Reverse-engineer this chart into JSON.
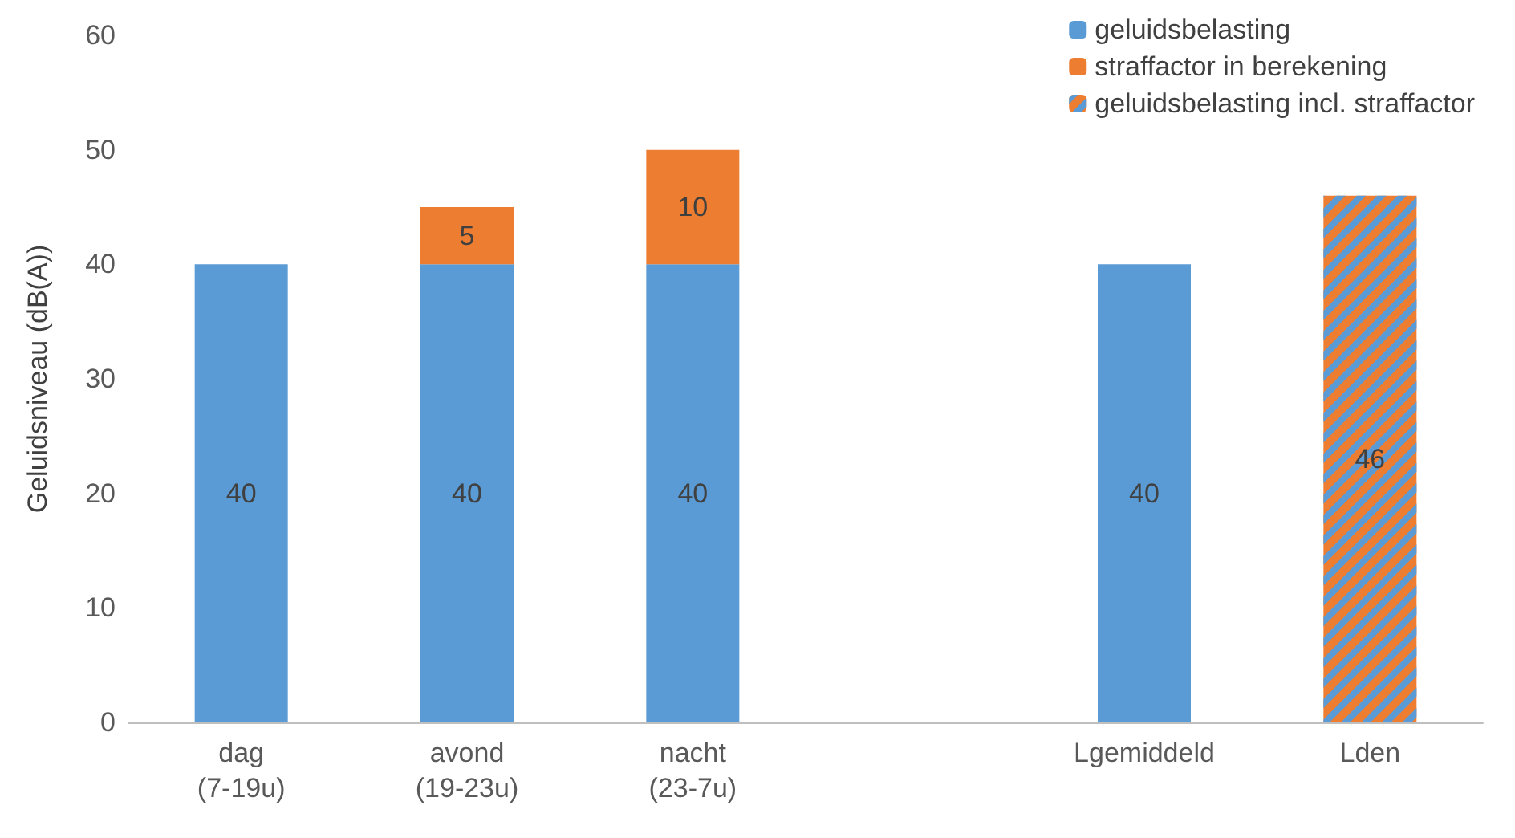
{
  "chart_data": {
    "type": "bar",
    "stacked": true,
    "ylabel": "Geluidsniveau (dB(A))",
    "categories": [
      "dag\n(7-19u)",
      "avond\n(19-23u)",
      "nacht\n(23-7u)",
      null,
      "Lgemiddeld",
      "Lden"
    ],
    "series": [
      {
        "name": "geluidsbelasting",
        "color": "#5b9bd5",
        "values": [
          40,
          40,
          40,
          null,
          40,
          null
        ]
      },
      {
        "name": "straffactor in berekening",
        "color": "#ed7d31",
        "values": [
          null,
          5,
          10,
          null,
          null,
          null
        ]
      },
      {
        "name": "geluidsbelasting incl. straffactor",
        "color": "#ed7d31",
        "values": [
          null,
          null,
          null,
          null,
          null,
          46
        ]
      }
    ],
    "ylim": [
      0,
      60
    ],
    "yticks": [
      0,
      10,
      20,
      30,
      40,
      50,
      60
    ],
    "grid": false,
    "legend": "top right",
    "data_labels": true
  }
}
